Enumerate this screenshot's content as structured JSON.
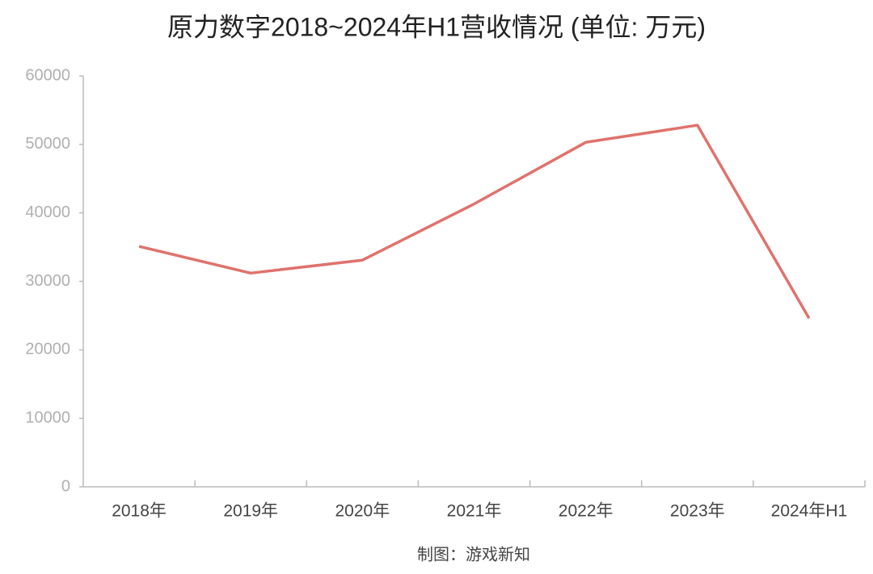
{
  "chart_data": {
    "type": "line",
    "title": "原力数字2018~2024年H1营收情况 (单位: 万元)",
    "categories": [
      "2018年",
      "2019年",
      "2020年",
      "2021年",
      "2022年",
      "2023年",
      "2024年H1"
    ],
    "series": [
      {
        "name": "营收",
        "color": "#e0726d",
        "values": [
          35100,
          31200,
          33100,
          41300,
          50300,
          52800,
          24600
        ]
      }
    ],
    "ylim": [
      0,
      60000
    ],
    "yticks": [
      0,
      10000,
      20000,
      30000,
      40000,
      50000,
      60000
    ],
    "grid": false,
    "source": "制图：游戏新知"
  }
}
